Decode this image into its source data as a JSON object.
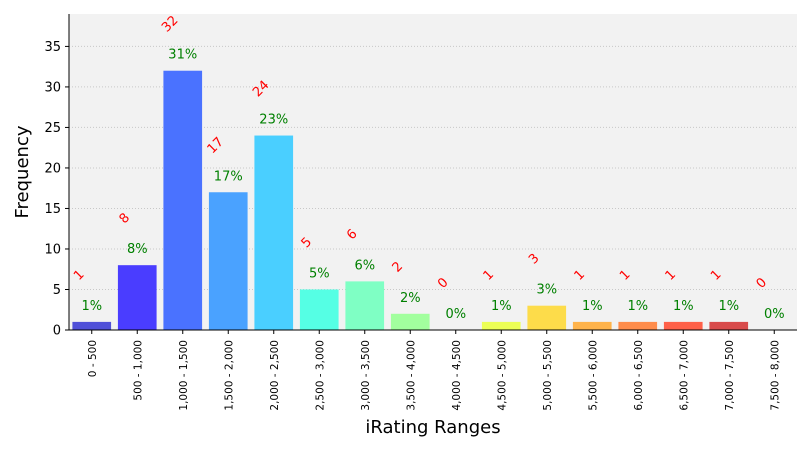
{
  "chart_data": {
    "type": "bar",
    "title": "",
    "xlabel": "iRating Ranges",
    "ylabel": "Frequency",
    "ylim": [
      0,
      39
    ],
    "yticks": [
      0,
      5,
      10,
      15,
      20,
      25,
      30,
      35
    ],
    "grid": true,
    "categories": [
      "0 - 500",
      "500 - 1,000",
      "1,000 - 1,500",
      "1,500 - 2,000",
      "2,000 - 2,500",
      "2,500 - 3,000",
      "3,000 - 3,500",
      "3,500 - 4,000",
      "4,000 - 4,500",
      "4,500 - 5,000",
      "5,000 - 5,500",
      "5,500 - 6,000",
      "6,000 - 6,500",
      "6,500 - 7,000",
      "7,000 - 7,500",
      "7,500 - 8,000"
    ],
    "values": [
      1,
      8,
      32,
      17,
      24,
      5,
      6,
      2,
      0,
      1,
      3,
      1,
      1,
      1,
      1,
      0
    ],
    "count_labels": [
      "1",
      "8",
      "32",
      "17",
      "24",
      "5",
      "6",
      "2",
      "0",
      "1",
      "3",
      "1",
      "1",
      "1",
      "1",
      "0"
    ],
    "percent_labels": [
      "1%",
      "8%",
      "31%",
      "17%",
      "23%",
      "5%",
      "6%",
      "2%",
      "0%",
      "1%",
      "3%",
      "1%",
      "1%",
      "1%",
      "1%",
      "0%"
    ],
    "bar_colors": [
      "#5050d8",
      "#4a3dff",
      "#4a72ff",
      "#4aa2ff",
      "#4acfff",
      "#55ffe4",
      "#7fffc4",
      "#a2ff9e",
      "#c6ff7a",
      "#ecff55",
      "#fddc4a",
      "#ffb34a",
      "#ff8c4a",
      "#ff6048",
      "#d84a4a",
      "#b03434"
    ],
    "count_label_color": "#ff0000",
    "percent_label_color": "#008000",
    "plot_background": "#f2f2f2",
    "grid_color": "#c8c8c8"
  }
}
